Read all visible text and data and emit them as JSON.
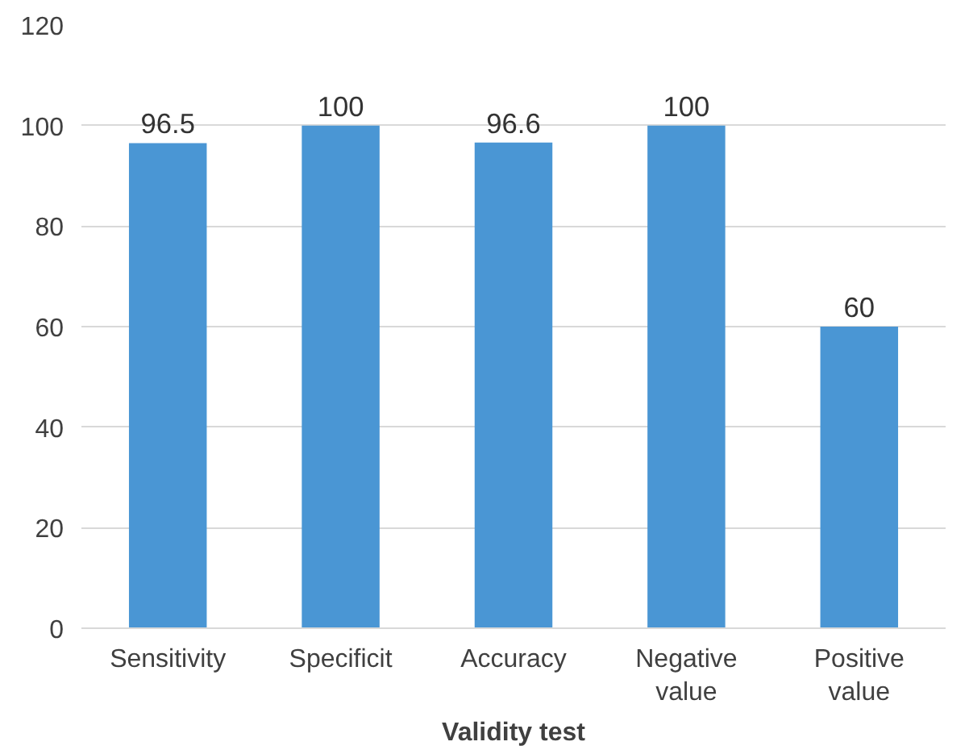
{
  "chart_data": {
    "type": "bar",
    "xlabel": "Validity test",
    "categories": [
      "Sensitivity",
      "Specificit",
      "Accuracy",
      "Negative\nvalue",
      "Positive\nvalue"
    ],
    "values": [
      96.5,
      100,
      96.6,
      100,
      60
    ],
    "color": "#4a96d4",
    "ylim": [
      0,
      120
    ],
    "yticks": [
      0,
      20,
      40,
      60,
      80,
      100,
      120
    ],
    "grid": "y",
    "data_labels": true
  }
}
